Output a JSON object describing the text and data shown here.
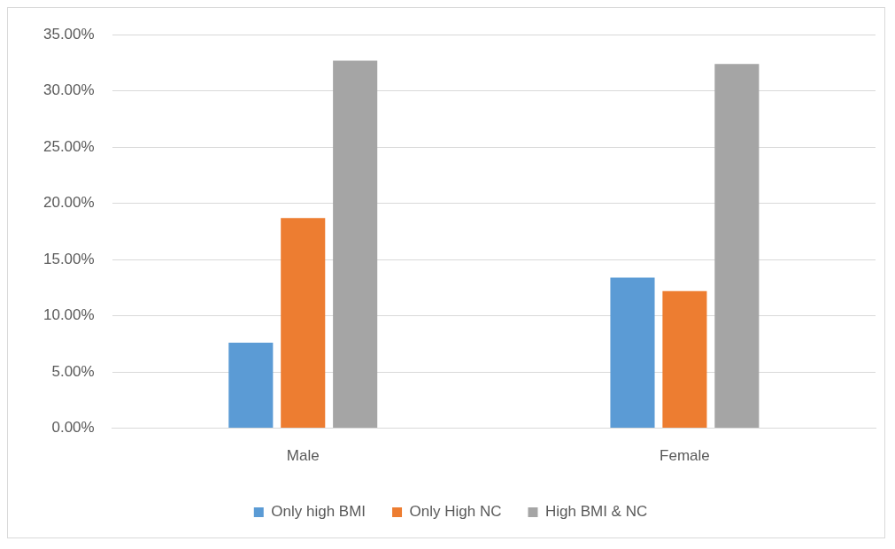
{
  "chart_data": {
    "type": "bar",
    "categories": [
      "Male",
      "Female"
    ],
    "series": [
      {
        "name": "Only high BMI",
        "color": "#5b9bd5",
        "values": [
          7.6,
          13.4
        ]
      },
      {
        "name": "Only High NC",
        "color": "#ed7d31",
        "values": [
          18.7,
          12.2
        ]
      },
      {
        "name": "High BMI & NC",
        "color": "#a5a5a5",
        "values": [
          32.7,
          32.4
        ]
      }
    ],
    "ylim": [
      0,
      35
    ],
    "yticks": [
      {
        "value": 0,
        "label": "0.00%"
      },
      {
        "value": 5,
        "label": "5.00%"
      },
      {
        "value": 10,
        "label": "10.00%"
      },
      {
        "value": 15,
        "label": "15.00%"
      },
      {
        "value": 20,
        "label": "20.00%"
      },
      {
        "value": 25,
        "label": "25.00%"
      },
      {
        "value": 30,
        "label": "30.00%"
      },
      {
        "value": 35,
        "label": "35.00%"
      }
    ],
    "grid": "y",
    "legend": "bottom"
  }
}
